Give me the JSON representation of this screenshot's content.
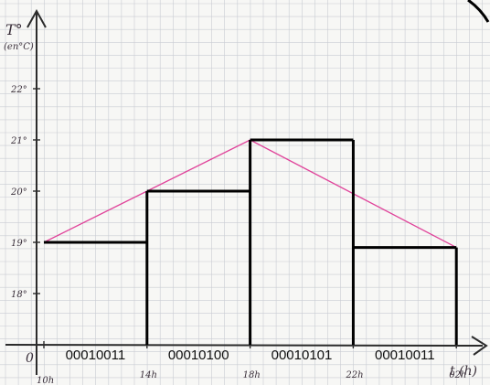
{
  "chart_data": {
    "type": "line",
    "ylabel": "T°",
    "ylabel_unit": "(en°C)",
    "xlabel": "t (h)",
    "origin_label": "0",
    "ylim": [
      17,
      23
    ],
    "xlim": [
      10,
      22
    ],
    "y_ticks": [
      {
        "value": 18,
        "label": "18°"
      },
      {
        "value": 19,
        "label": "19°"
      },
      {
        "value": 20,
        "label": "20°"
      },
      {
        "value": 21,
        "label": "21°"
      },
      {
        "value": 22,
        "label": "22°"
      }
    ],
    "x_ticks": [
      {
        "value": 10,
        "label": "10h"
      },
      {
        "value": 14,
        "label": "14h"
      },
      {
        "value": 18,
        "label": "18h"
      },
      {
        "value": 22,
        "label": "22h"
      },
      {
        "value": 26,
        "label": "02h"
      }
    ],
    "series": [
      {
        "color": "#e0439a",
        "x": [
          10,
          18,
          26
        ],
        "y": [
          19,
          21,
          18.9
        ]
      },
      {
        "style": "step",
        "color": "#000000",
        "segments": [
          {
            "x0": 10,
            "x1": 14,
            "y": 19
          },
          {
            "x0": 14,
            "x1": 18,
            "y": 20
          },
          {
            "x0": 18,
            "x1": 22,
            "y": 21
          },
          {
            "x0": 22,
            "x1": 26,
            "y": 18.9
          }
        ]
      }
    ],
    "binary_codes": [
      "00010011",
      "00010100",
      "00010101",
      "00010011"
    ],
    "grid": true
  }
}
